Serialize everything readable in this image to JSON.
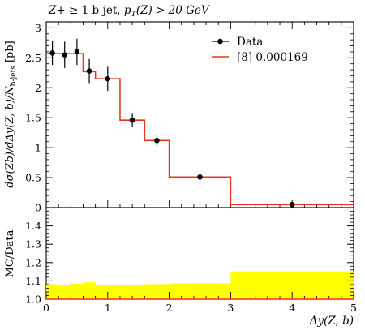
{
  "chart_data": [
    {
      "type": "line",
      "title": "Z+ ≥ 1 b-jet, pT(Z) > 20 GeV",
      "xlabel": "Δy(Z, b)",
      "ylabel": "dσ(Zb)/dΔy(Z, b)/Nb-jets [pb]",
      "xlim": [
        0,
        5
      ],
      "ylim": [
        0,
        3.1
      ],
      "yticks": [
        "0",
        "0.5",
        "1",
        "1.5",
        "2",
        "2.5",
        "3"
      ],
      "bin_edges": [
        0,
        0.2,
        0.4,
        0.6,
        0.8,
        1.2,
        1.6,
        2.0,
        3.0,
        5.0
      ],
      "legend_position": "top-right",
      "grid": false,
      "series": [
        {
          "name": "Data",
          "style": "points-with-errorbars",
          "color": "#000000",
          "x": [
            0.1,
            0.3,
            0.5,
            0.7,
            1.0,
            1.4,
            1.8,
            2.5,
            4.0
          ],
          "values": [
            2.58,
            2.55,
            2.6,
            2.28,
            2.15,
            1.46,
            1.12,
            0.51,
            0.05
          ],
          "errors": [
            0.2,
            0.22,
            0.22,
            0.2,
            0.2,
            0.12,
            0.09,
            0.03,
            0.02
          ]
        },
        {
          "name": "[8] 0.000169",
          "style": "histogram-step",
          "color": "#e8361e",
          "values": [
            2.57,
            2.57,
            2.57,
            2.27,
            2.15,
            1.46,
            1.12,
            0.51,
            0.05
          ]
        }
      ]
    },
    {
      "type": "area",
      "xlabel": "Δy(Z, b)",
      "ylabel": "MC/Data",
      "xlim": [
        0,
        5
      ],
      "ylim": [
        1.0,
        1.5
      ],
      "xticks": [
        "0",
        "1",
        "2",
        "3",
        "4",
        "5"
      ],
      "yticks": [
        "1.0",
        "1.1",
        "1.2",
        "1.3",
        "1.4"
      ],
      "bin_edges": [
        0,
        0.2,
        0.4,
        0.6,
        0.8,
        1.2,
        1.6,
        2.0,
        3.0,
        5.0
      ],
      "series": [
        {
          "name": "",
          "style": "ratio-band",
          "color": "#ffff00",
          "values": [
            1.082,
            1.078,
            1.085,
            1.092,
            1.078,
            1.075,
            1.082,
            1.086,
            1.152
          ]
        }
      ]
    }
  ]
}
